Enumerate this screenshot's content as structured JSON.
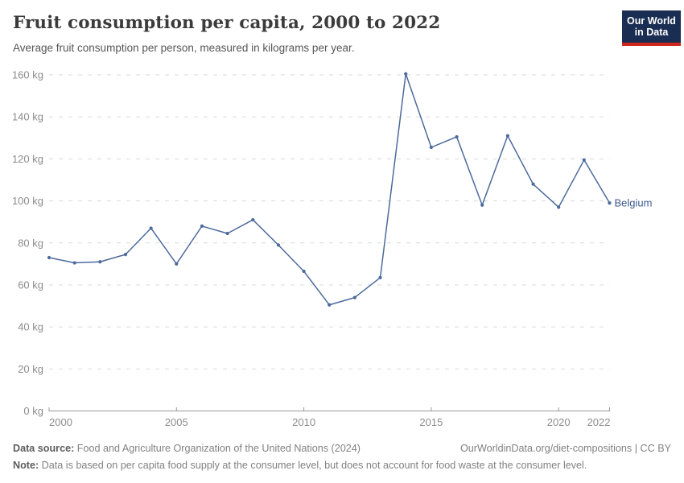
{
  "header": {
    "title": "Fruit consumption per capita, 2000 to 2022",
    "subtitle": "Average fruit consumption per person, measured in kilograms per year."
  },
  "logo": {
    "line1": "Our World",
    "line2": "in Data",
    "bg_color": "#1A2E54",
    "accent_color": "#CE261B"
  },
  "chart_data": {
    "type": "line",
    "title": "Fruit consumption per capita, 2000 to 2022",
    "xlabel": "",
    "ylabel": "kilograms per year",
    "xlim": [
      2000,
      2022
    ],
    "ylim": [
      0,
      160
    ],
    "grid": true,
    "legend_position": "end-of-line",
    "x_ticks": [
      2000,
      2005,
      2010,
      2015,
      2020,
      2022
    ],
    "y_ticks": [
      0,
      20,
      40,
      60,
      80,
      100,
      120,
      140,
      160
    ],
    "y_tick_suffix": " kg",
    "x": [
      2000,
      2001,
      2002,
      2003,
      2004,
      2005,
      2006,
      2007,
      2008,
      2009,
      2010,
      2011,
      2012,
      2013,
      2014,
      2015,
      2016,
      2017,
      2018,
      2019,
      2020,
      2021,
      2022
    ],
    "series": [
      {
        "name": "Belgium",
        "color": "#4C6A9C",
        "label_color": "#3d5a8f",
        "values": [
          73,
          70.5,
          71,
          74.5,
          87,
          70,
          88,
          84.5,
          91,
          79,
          66.5,
          50.5,
          54,
          63.5,
          160.5,
          125.5,
          130.5,
          98,
          131,
          108,
          97,
          119.5,
          99
        ]
      }
    ],
    "grid_color": "#dadada",
    "axis_color": "#9a9a9a",
    "tick_label_color": "#8c8c8c"
  },
  "footer": {
    "data_source_label": "Data source:",
    "data_source": " Food and Agriculture Organization of the United Nations (2024)",
    "link": "OurWorldinData.org/diet-compositions",
    "separator": " | ",
    "license": "CC BY",
    "note_label": "Note:",
    "note": " Data is based on per capita food supply at the consumer level, but does not account for food waste at the consumer level."
  }
}
